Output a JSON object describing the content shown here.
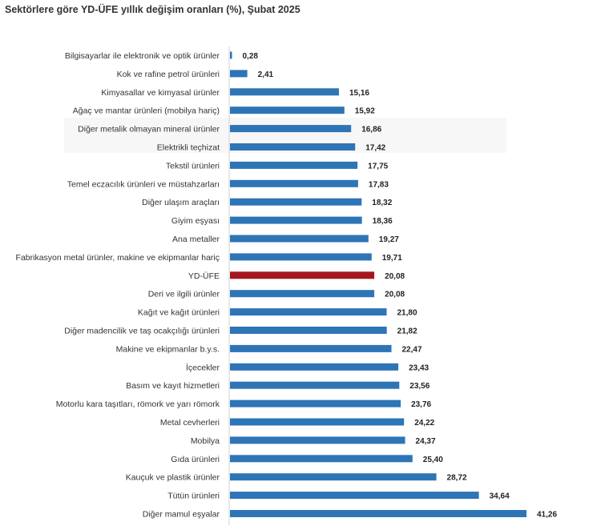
{
  "chart_data": {
    "type": "bar",
    "orientation": "horizontal",
    "title": "Sektörlere göre YD-ÜFE yıllık değişim oranları (%), Şubat 2025",
    "xlabel": "",
    "ylabel": "",
    "xlim": [
      0,
      45
    ],
    "grid": false,
    "legend": "none",
    "categories": [
      "Bilgisayarlar ile elektronik ve optik ürünler",
      "Kok ve rafine petrol ürünleri",
      "Kimyasallar ve kimyasal ürünler",
      "Ağaç ve mantar ürünleri (mobilya hariç)",
      "Diğer metalik olmayan mineral ürünler",
      "Elektrikli teçhizat",
      "Tekstil ürünleri",
      "Temel eczacılık ürünleri ve müstahzarları",
      "Diğer ulaşım araçları",
      "Giyim eşyası",
      "Ana metaller",
      "Fabrikasyon metal ürünler, makine ve ekipmanlar hariç",
      "YD-ÜFE",
      "Deri ve ilgili ürünler",
      "Kağıt ve kağıt ürünleri",
      "Diğer madencilik ve taş ocakçılığı ürünleri",
      "Makine ve ekipmanlar b.y.s.",
      "İçecekler",
      "Basım ve kayıt hizmetleri",
      "Motorlu kara taşıtları, römork ve yarı römork",
      "Metal cevherleri",
      "Mobilya",
      "Gıda ürünleri",
      "Kauçuk ve plastik ürünler",
      "Tütün ürünleri",
      "Diğer mamul eşyalar"
    ],
    "values": [
      0.28,
      2.41,
      15.16,
      15.92,
      16.86,
      17.42,
      17.75,
      17.83,
      18.32,
      18.36,
      19.27,
      19.71,
      20.08,
      20.08,
      21.8,
      21.82,
      22.47,
      23.43,
      23.56,
      23.76,
      24.22,
      24.37,
      25.4,
      28.72,
      34.64,
      41.26
    ],
    "value_labels": [
      "0,28",
      "2,41",
      "15,16",
      "15,92",
      "16,86",
      "17,42",
      "17,75",
      "17,83",
      "18,32",
      "18,36",
      "19,27",
      "19,71",
      "20,08",
      "20,08",
      "21,80",
      "21,82",
      "22,47",
      "23,43",
      "23,56",
      "23,76",
      "24,22",
      "24,37",
      "25,40",
      "28,72",
      "34,64",
      "41,26"
    ],
    "colors": {
      "bar": "#2e75b6",
      "highlight": "#a6161e",
      "highlight_category": "YD-ÜFE"
    }
  }
}
